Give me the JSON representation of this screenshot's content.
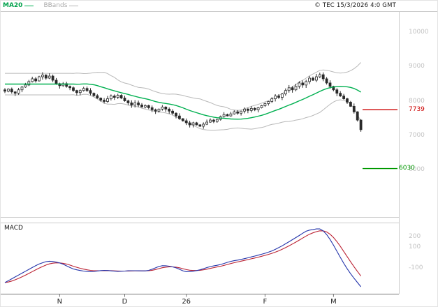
{
  "header": {
    "ma20_label": "MA20",
    "bbands_label": "BBands",
    "copyright": "© TEC 15/3/2026 4:0 GMT"
  },
  "colors": {
    "candle": "#2a2a2a",
    "candle_up_fill": "#ffffff",
    "candle_down_fill": "#2a2a2a",
    "ma20": "#00b050",
    "bands": "#b8b8b8",
    "level_resistance": "#cc0000",
    "level_support": "#009900",
    "macd_line": "#2233aa",
    "signal_line": "#bb2233",
    "axis_text": "#c2c2c2",
    "frame": "#cccccc",
    "axis_line": "#777777"
  },
  "chart_data": [
    {
      "type": "candlestick",
      "title": "",
      "ylabel": "",
      "ylim": [
        5800,
        10600
      ],
      "y_tick_values": [
        10000,
        9000,
        8000,
        7000,
        6000
      ],
      "y_tick_labels": [
        "10000",
        "9000",
        "8000",
        "7000",
        "6000"
      ],
      "x_tick_labels": [
        "N",
        "D",
        "26",
        "F",
        "M"
      ],
      "x_tick_indices": [
        16,
        35,
        53,
        76,
        96
      ],
      "levels": [
        {
          "value": 7739,
          "label": "7739",
          "color": "#cc0000"
        },
        {
          "value": 6030,
          "label": "6030",
          "color": "#009900"
        }
      ],
      "overlays": [
        {
          "name": "MA20",
          "kind": "sma",
          "window": 20,
          "color": "#00b050"
        },
        {
          "name": "BBands",
          "kind": "bollinger",
          "window": 20,
          "mult": 2,
          "color": "#b8b8b8"
        }
      ],
      "closes": [
        8280,
        8340,
        8260,
        8220,
        8320,
        8400,
        8460,
        8560,
        8640,
        8580,
        8700,
        8750,
        8660,
        8720,
        8600,
        8500,
        8440,
        8500,
        8420,
        8380,
        8300,
        8240,
        8300,
        8360,
        8300,
        8220,
        8150,
        8080,
        8020,
        7980,
        8060,
        8140,
        8100,
        8160,
        8080,
        8000,
        7940,
        7880,
        7940,
        7880,
        7820,
        7860,
        7800,
        7740,
        7700,
        7760,
        7820,
        7760,
        7700,
        7640,
        7560,
        7480,
        7420,
        7360,
        7300,
        7360,
        7300,
        7260,
        7320,
        7380,
        7440,
        7400,
        7460,
        7540,
        7600,
        7560,
        7620,
        7680,
        7640,
        7700,
        7760,
        7720,
        7780,
        7740,
        7800,
        7860,
        7920,
        7980,
        8060,
        8140,
        8100,
        8200,
        8300,
        8380,
        8320,
        8420,
        8520,
        8460,
        8560,
        8660,
        8600,
        8700,
        8760,
        8640,
        8520,
        8420,
        8320,
        8220,
        8140,
        8060,
        7960,
        7840,
        7680,
        7440,
        7160
      ]
    },
    {
      "type": "line",
      "name": "MACD",
      "y_tick_values": [
        200,
        100,
        -100
      ],
      "y_tick_labels": [
        "200",
        "100",
        "-100"
      ],
      "series": [
        {
          "name": "MACD",
          "color": "#2233aa",
          "points": [
            [
              0,
              -240
            ],
            [
              5,
              -150
            ],
            [
              10,
              -60
            ],
            [
              13,
              -28
            ],
            [
              17,
              -60
            ],
            [
              20,
              -115
            ],
            [
              25,
              -140
            ],
            [
              29,
              -120
            ],
            [
              33,
              -135
            ],
            [
              37,
              -125
            ],
            [
              42,
              -130
            ],
            [
              46,
              -70
            ],
            [
              50,
              -95
            ],
            [
              53,
              -145
            ],
            [
              57,
              -120
            ],
            [
              60,
              -85
            ],
            [
              63,
              -70
            ],
            [
              66,
              -35
            ],
            [
              69,
              -20
            ],
            [
              72,
              5
            ],
            [
              75,
              30
            ],
            [
              78,
              60
            ],
            [
              81,
              110
            ],
            [
              84,
              170
            ],
            [
              87,
              230
            ],
            [
              89,
              275
            ],
            [
              90,
              260
            ],
            [
              92,
              285
            ],
            [
              93,
              270
            ],
            [
              95,
              180
            ],
            [
              97,
              60
            ],
            [
              99,
              -60
            ],
            [
              101,
              -160
            ],
            [
              103,
              -240
            ],
            [
              104,
              -280
            ]
          ]
        },
        {
          "name": "Signal",
          "color": "#bb2233",
          "derived": "EMA(MACD,9)"
        }
      ]
    }
  ]
}
